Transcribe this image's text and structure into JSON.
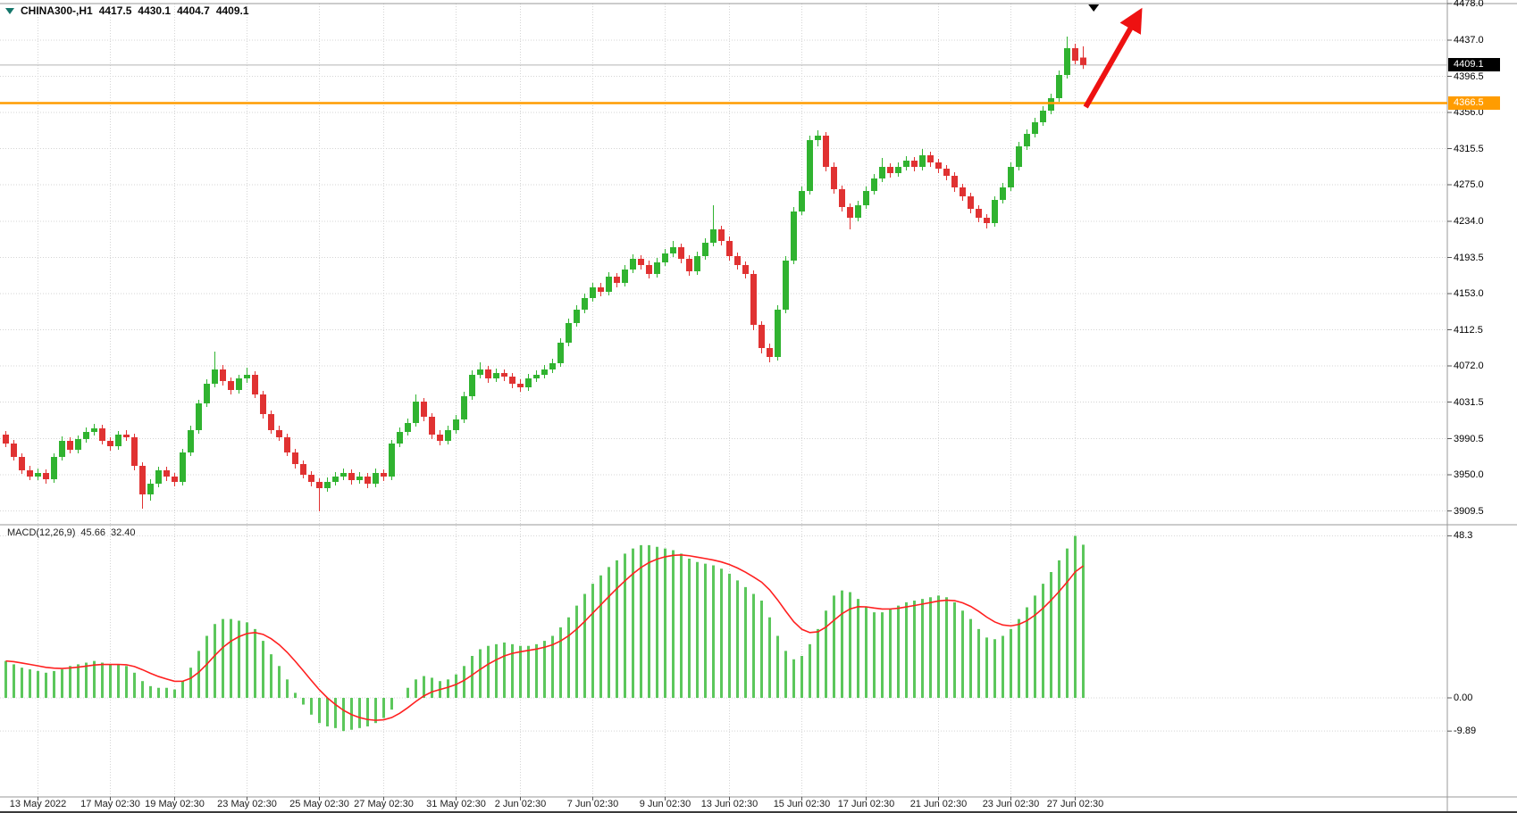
{
  "header": {
    "symbol_period": "CHINA300-,H1",
    "open": "4417.5",
    "high": "4430.1",
    "low": "4404.7",
    "close": "4409.1"
  },
  "macd": {
    "name": "MACD(12,26,9)",
    "value": "45.66",
    "signal": "32.40"
  },
  "price_axis": {
    "bid_label": "4409.1",
    "hline_label": "4366.5"
  },
  "colors": {
    "bull": "#30b330",
    "bear": "#e03232",
    "macd_bar": "#5cc75c",
    "macd_signal": "#ff2020",
    "hline": "#ff9c00",
    "arrow": "#ee1111",
    "grid": "#d4d4d4",
    "border": "#9a9a9a",
    "bid_line": "#b5b5b5",
    "tick": "#555555"
  },
  "chart_data": [
    {
      "type": "candlestick",
      "title": "CHINA300-,H1",
      "timeframe": "H1",
      "ylim": [
        3892,
        4478
      ],
      "current_price": 4409.1,
      "horizontal_line": {
        "price": 4366.5
      },
      "y_ticks": [
        {
          "v": 4478.0,
          "label": "4478.0"
        },
        {
          "v": 4437.0,
          "label": "4437.0"
        },
        {
          "v": 4396.5,
          "label": "4396.5"
        },
        {
          "v": 4356.0,
          "label": "4356.0"
        },
        {
          "v": 4315.5,
          "label": "4315.5"
        },
        {
          "v": 4275.0,
          "label": "4275.0"
        },
        {
          "v": 4234.0,
          "label": "4234.0"
        },
        {
          "v": 4193.5,
          "label": "4193.5"
        },
        {
          "v": 4153.0,
          "label": "4153.0"
        },
        {
          "v": 4112.5,
          "label": "4112.5"
        },
        {
          "v": 4072.0,
          "label": "4072.0"
        },
        {
          "v": 4031.5,
          "label": "4031.5"
        },
        {
          "v": 3990.5,
          "label": "3990.5"
        },
        {
          "v": 3950.0,
          "label": "3950.0"
        },
        {
          "v": 3909.5,
          "label": "3909.5"
        }
      ],
      "x_ticks": [
        {
          "i": 4,
          "label": "13 May 2022"
        },
        {
          "i": 13,
          "label": "17 May 02:30"
        },
        {
          "i": 21,
          "label": "19 May 02:30"
        },
        {
          "i": 30,
          "label": "23 May 02:30"
        },
        {
          "i": 39,
          "label": "25 May 02:30"
        },
        {
          "i": 47,
          "label": "27 May 02:30"
        },
        {
          "i": 56,
          "label": "31 May 02:30"
        },
        {
          "i": 64,
          "label": "2 Jun 02:30"
        },
        {
          "i": 73,
          "label": "7 Jun 02:30"
        },
        {
          "i": 82,
          "label": "9 Jun 02:30"
        },
        {
          "i": 90,
          "label": "13 Jun 02:30"
        },
        {
          "i": 99,
          "label": "15 Jun 02:30"
        },
        {
          "i": 107,
          "label": "17 Jun 02:30"
        },
        {
          "i": 116,
          "label": "21 Jun 02:30"
        },
        {
          "i": 125,
          "label": "23 Jun 02:30"
        },
        {
          "i": 133,
          "label": "27 Jun 02:30"
        }
      ],
      "candles": [
        [
          3995,
          3999,
          3981,
          3985
        ],
        [
          3985,
          3989,
          3966,
          3970
        ],
        [
          3970,
          3974,
          3951,
          3955
        ],
        [
          3955,
          3960,
          3944,
          3948
        ],
        [
          3948,
          3957,
          3944,
          3952
        ],
        [
          3952,
          3956,
          3940,
          3945
        ],
        [
          3945,
          3974,
          3941,
          3970
        ],
        [
          3970,
          3993,
          3966,
          3988
        ],
        [
          3988,
          3992,
          3974,
          3978
        ],
        [
          3978,
          3994,
          3974,
          3990
        ],
        [
          3990,
          4003,
          3986,
          3998
        ],
        [
          3998,
          4007,
          3994,
          4002
        ],
        [
          4002,
          4006,
          3984,
          3988
        ],
        [
          3988,
          3992,
          3977,
          3982
        ],
        [
          3982,
          3999,
          3978,
          3995
        ],
        [
          3995,
          4000,
          3988,
          3992
        ],
        [
          3992,
          3996,
          3955,
          3960
        ],
        [
          3960,
          3964,
          3912,
          3928
        ],
        [
          3928,
          3945,
          3921,
          3940
        ],
        [
          3940,
          3959,
          3936,
          3955
        ],
        [
          3955,
          3959,
          3943,
          3948
        ],
        [
          3948,
          3952,
          3937,
          3942
        ],
        [
          3942,
          3979,
          3938,
          3975
        ],
        [
          3975,
          4005,
          3971,
          4000
        ],
        [
          4000,
          4034,
          3996,
          4030
        ],
        [
          4030,
          4057,
          4026,
          4052
        ],
        [
          4052,
          4088,
          4048,
          4068
        ],
        [
          4068,
          4073,
          4050,
          4055
        ],
        [
          4055,
          4059,
          4040,
          4045
        ],
        [
          4045,
          4062,
          4041,
          4058
        ],
        [
          4058,
          4070,
          4053,
          4062
        ],
        [
          4062,
          4066,
          4036,
          4040
        ],
        [
          4040,
          4044,
          4013,
          4018
        ],
        [
          4018,
          4022,
          3996,
          4000
        ],
        [
          4000,
          4005,
          3988,
          3992
        ],
        [
          3992,
          3996,
          3971,
          3975
        ],
        [
          3975,
          3979,
          3957,
          3962
        ],
        [
          3962,
          3966,
          3946,
          3950
        ],
        [
          3950,
          3954,
          3937,
          3942
        ],
        [
          3942,
          3946,
          3909,
          3935
        ],
        [
          3935,
          3947,
          3931,
          3942
        ],
        [
          3942,
          3953,
          3938,
          3948
        ],
        [
          3948,
          3957,
          3944,
          3952
        ],
        [
          3952,
          3956,
          3939,
          3944
        ],
        [
          3944,
          3953,
          3940,
          3948
        ],
        [
          3948,
          3952,
          3935,
          3940
        ],
        [
          3940,
          3957,
          3936,
          3952
        ],
        [
          3952,
          3956,
          3943,
          3948
        ],
        [
          3948,
          3989,
          3944,
          3985
        ],
        [
          3985,
          4003,
          3981,
          3998
        ],
        [
          3998,
          4013,
          3994,
          4008
        ],
        [
          4008,
          4040,
          4004,
          4032
        ],
        [
          4032,
          4036,
          4010,
          4015
        ],
        [
          4015,
          4019,
          3990,
          3995
        ],
        [
          3995,
          4000,
          3983,
          3988
        ],
        [
          3988,
          4005,
          3984,
          4000
        ],
        [
          4000,
          4017,
          3996,
          4012
        ],
        [
          4012,
          4043,
          4008,
          4038
        ],
        [
          4038,
          4067,
          4034,
          4062
        ],
        [
          4062,
          4076,
          4058,
          4068
        ],
        [
          4068,
          4072,
          4053,
          4058
        ],
        [
          4058,
          4069,
          4054,
          4064
        ],
        [
          4064,
          4068,
          4055,
          4060
        ],
        [
          4060,
          4064,
          4047,
          4052
        ],
        [
          4052,
          4057,
          4043,
          4048
        ],
        [
          4048,
          4063,
          4044,
          4058
        ],
        [
          4058,
          4067,
          4054,
          4062
        ],
        [
          4062,
          4073,
          4058,
          4068
        ],
        [
          4068,
          4080,
          4064,
          4075
        ],
        [
          4075,
          4103,
          4071,
          4098
        ],
        [
          4098,
          4125,
          4094,
          4120
        ],
        [
          4120,
          4140,
          4116,
          4135
        ],
        [
          4135,
          4153,
          4131,
          4148
        ],
        [
          4148,
          4165,
          4144,
          4160
        ],
        [
          4160,
          4165,
          4150,
          4155
        ],
        [
          4155,
          4177,
          4151,
          4172
        ],
        [
          4172,
          4176,
          4160,
          4165
        ],
        [
          4165,
          4185,
          4161,
          4180
        ],
        [
          4180,
          4197,
          4176,
          4192
        ],
        [
          4192,
          4196,
          4180,
          4185
        ],
        [
          4185,
          4190,
          4170,
          4175
        ],
        [
          4175,
          4193,
          4171,
          4188
        ],
        [
          4188,
          4203,
          4184,
          4198
        ],
        [
          4198,
          4212,
          4194,
          4205
        ],
        [
          4205,
          4209,
          4187,
          4192
        ],
        [
          4192,
          4196,
          4173,
          4178
        ],
        [
          4178,
          4200,
          4174,
          4195
        ],
        [
          4195,
          4215,
          4191,
          4210
        ],
        [
          4210,
          4252,
          4206,
          4225
        ],
        [
          4225,
          4229,
          4207,
          4212
        ],
        [
          4212,
          4217,
          4190,
          4195
        ],
        [
          4195,
          4199,
          4180,
          4185
        ],
        [
          4185,
          4189,
          4170,
          4175
        ],
        [
          4175,
          4179,
          4112,
          4118
        ],
        [
          4118,
          4122,
          4086,
          4092
        ],
        [
          4092,
          4097,
          4076,
          4082
        ],
        [
          4082,
          4140,
          4078,
          4135
        ],
        [
          4135,
          4195,
          4131,
          4190
        ],
        [
          4190,
          4250,
          4186,
          4245
        ],
        [
          4245,
          4273,
          4241,
          4268
        ],
        [
          4268,
          4330,
          4264,
          4325
        ],
        [
          4325,
          4336,
          4318,
          4330
        ],
        [
          4330,
          4334,
          4290,
          4295
        ],
        [
          4295,
          4300,
          4265,
          4270
        ],
        [
          4270,
          4274,
          4245,
          4250
        ],
        [
          4250,
          4254,
          4225,
          4238
        ],
        [
          4238,
          4257,
          4234,
          4252
        ],
        [
          4252,
          4273,
          4248,
          4268
        ],
        [
          4268,
          4287,
          4264,
          4282
        ],
        [
          4282,
          4305,
          4278,
          4295
        ],
        [
          4295,
          4299,
          4283,
          4288
        ],
        [
          4288,
          4300,
          4284,
          4295
        ],
        [
          4295,
          4307,
          4291,
          4302
        ],
        [
          4302,
          4306,
          4290,
          4295
        ],
        [
          4295,
          4315,
          4291,
          4308
        ],
        [
          4308,
          4312,
          4295,
          4300
        ],
        [
          4300,
          4304,
          4288,
          4293
        ],
        [
          4293,
          4297,
          4280,
          4285
        ],
        [
          4285,
          4289,
          4267,
          4272
        ],
        [
          4272,
          4276,
          4257,
          4262
        ],
        [
          4262,
          4266,
          4243,
          4248
        ],
        [
          4248,
          4252,
          4233,
          4238
        ],
        [
          4238,
          4242,
          4226,
          4232
        ],
        [
          4232,
          4262,
          4228,
          4258
        ],
        [
          4258,
          4277,
          4254,
          4272
        ],
        [
          4272,
          4300,
          4268,
          4295
        ],
        [
          4295,
          4323,
          4291,
          4318
        ],
        [
          4318,
          4337,
          4314,
          4332
        ],
        [
          4332,
          4350,
          4328,
          4345
        ],
        [
          4345,
          4363,
          4341,
          4358
        ],
        [
          4358,
          4377,
          4354,
          4372
        ],
        [
          4372,
          4403,
          4368,
          4398
        ],
        [
          4398,
          4441,
          4394,
          4428
        ],
        [
          4428,
          4433,
          4410,
          4414
        ],
        [
          4417.5,
          4430.1,
          4404.7,
          4409.1
        ]
      ],
      "annotations": [
        {
          "type": "arrow",
          "from": {
            "i": 134.3,
            "price": 4362
          },
          "to": {
            "i": 141,
            "price": 4468
          }
        },
        {
          "type": "triangle_marker",
          "i": 135.3,
          "price": 4477,
          "color": "#000000"
        }
      ]
    },
    {
      "type": "bar",
      "title": "MACD(12,26,9)",
      "value": 45.66,
      "signal_value": 32.4,
      "signal_period": 9,
      "ylim": [
        -9.89,
        48.3
      ],
      "y_ticks": [
        {
          "v": 48.3,
          "label": "48.3"
        },
        {
          "v": 0,
          "label": "0.00"
        },
        {
          "v": -9.89,
          "label": "-9.89"
        }
      ],
      "values": [
        11,
        10,
        9,
        8.5,
        8,
        7.5,
        8,
        8.5,
        9.5,
        10,
        10.5,
        11,
        10.5,
        10,
        10,
        9.5,
        7.5,
        5,
        3.5,
        3,
        3,
        2.5,
        5,
        9,
        14,
        18.5,
        22,
        23.5,
        23.5,
        23,
        22.5,
        20.5,
        17,
        13,
        9.5,
        5.5,
        1.5,
        -2,
        -5,
        -7.5,
        -8.5,
        -9,
        -9.89,
        -9.5,
        -9,
        -8.5,
        -7.5,
        -6,
        -3.5,
        0,
        3,
        5.5,
        6.5,
        6,
        5,
        5.5,
        7,
        9.5,
        12.5,
        14.5,
        15.5,
        16,
        16.5,
        16,
        15.5,
        15.5,
        16,
        17,
        18.5,
        21,
        24,
        27.5,
        31,
        34,
        36.5,
        39,
        41,
        43,
        44.5,
        45.5,
        45.5,
        45,
        44.5,
        44,
        43,
        41.5,
        40.5,
        40,
        39.5,
        38.5,
        37,
        35,
        33,
        31,
        29,
        24,
        18.5,
        14,
        11.5,
        12.5,
        16,
        20.5,
        26,
        30.5,
        32,
        31.5,
        29.5,
        27,
        25.5,
        25.5,
        26.5,
        27.5,
        28.5,
        29,
        29.5,
        30,
        30.5,
        30,
        28.5,
        26,
        23.5,
        20.5,
        18,
        17.5,
        18.5,
        20.5,
        23.5,
        27,
        30.5,
        34,
        37.5,
        41,
        44.5,
        48.3,
        45.66
      ]
    }
  ]
}
